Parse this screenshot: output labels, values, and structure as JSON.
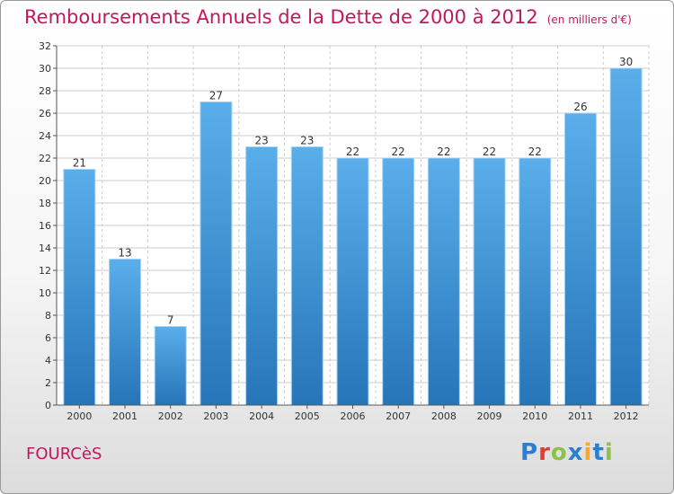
{
  "title": "Remboursements Annuels de la Dette de 2000 à 2012",
  "unit_note": "(en milliers d'€)",
  "commune": "FOURCèS",
  "logo": "Proxiti",
  "colors": {
    "title": "#c2185b",
    "bar_top": "#5aaeea",
    "bar_bottom": "#2675b8",
    "grid": "#cccccc",
    "axis": "#555555"
  },
  "chart_data": {
    "type": "bar",
    "title": "Remboursements Annuels de la Dette de 2000 à 2012",
    "subtitle": "(en milliers d'€)",
    "xlabel": "",
    "ylabel": "",
    "ylim": [
      0,
      32
    ],
    "ytick_step": 2,
    "grid": true,
    "categories": [
      "2000",
      "2001",
      "2002",
      "2003",
      "2004",
      "2005",
      "2006",
      "2007",
      "2008",
      "2009",
      "2010",
      "2011",
      "2012"
    ],
    "values": [
      21,
      13,
      7,
      27,
      23,
      23,
      22,
      22,
      22,
      22,
      22,
      26,
      30
    ]
  }
}
